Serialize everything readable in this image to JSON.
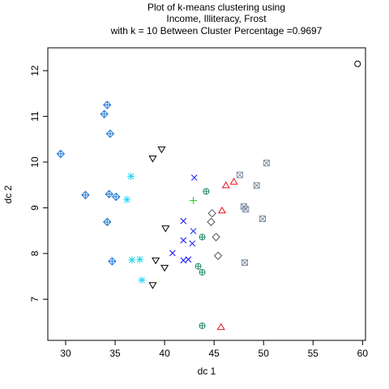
{
  "chart_data": {
    "type": "scatter",
    "title_lines": [
      "Plot of k-means clustering using",
      "Income, Illiteracy, Frost",
      "with  k = 10 Between Cluster Percentage =0.9697"
    ],
    "xlabel": "dc 1",
    "ylabel": "dc 2",
    "xlim": [
      28.2,
      60.3
    ],
    "ylim": [
      6.1,
      12.5
    ],
    "xticks": [
      30,
      35,
      40,
      45,
      50,
      55,
      60
    ],
    "yticks": [
      7,
      8,
      9,
      10,
      11,
      12
    ],
    "grid": false,
    "series": [
      {
        "marker": "circle",
        "color": "#000000",
        "points": [
          [
            59.5,
            12.15
          ]
        ]
      },
      {
        "marker": "diamond-plus",
        "color": "#1f77d4",
        "points": [
          [
            34.2,
            11.25
          ],
          [
            33.9,
            11.05
          ],
          [
            34.5,
            10.62
          ],
          [
            29.5,
            10.18
          ],
          [
            32.0,
            9.28
          ],
          [
            34.4,
            9.3
          ],
          [
            35.1,
            9.24
          ],
          [
            34.2,
            8.69
          ],
          [
            34.7,
            7.83
          ]
        ]
      },
      {
        "marker": "triangle-down",
        "color": "#000000",
        "points": [
          [
            39.7,
            10.28
          ],
          [
            38.8,
            10.08
          ],
          [
            40.1,
            8.55
          ],
          [
            39.1,
            7.85
          ],
          [
            40.0,
            7.69
          ],
          [
            38.8,
            7.31
          ]
        ]
      },
      {
        "marker": "asterisk",
        "color": "#22d3f0",
        "points": [
          [
            36.6,
            9.69
          ],
          [
            36.2,
            9.18
          ],
          [
            36.7,
            7.86
          ],
          [
            37.5,
            7.87
          ],
          [
            37.7,
            7.42
          ]
        ]
      },
      {
        "marker": "x",
        "color": "#1010ff",
        "points": [
          [
            43.0,
            9.66
          ],
          [
            41.9,
            8.71
          ],
          [
            42.9,
            8.49
          ],
          [
            41.9,
            8.29
          ],
          [
            42.8,
            8.22
          ],
          [
            40.8,
            8.01
          ],
          [
            42.4,
            7.87
          ],
          [
            41.9,
            7.85
          ]
        ]
      },
      {
        "marker": "plus",
        "color": "#22cc22",
        "points": [
          [
            42.9,
            9.16
          ]
        ]
      },
      {
        "marker": "circle-plus",
        "color": "#228b6b",
        "points": [
          [
            44.2,
            9.36
          ],
          [
            43.8,
            8.36
          ],
          [
            43.4,
            7.72
          ],
          [
            43.8,
            7.59
          ],
          [
            43.8,
            6.42
          ]
        ]
      },
      {
        "marker": "diamond",
        "color": "#555555",
        "points": [
          [
            44.8,
            8.88
          ],
          [
            44.7,
            8.69
          ],
          [
            45.2,
            8.36
          ],
          [
            45.4,
            7.95
          ]
        ]
      },
      {
        "marker": "triangle-up",
        "color": "#e8101e",
        "points": [
          [
            46.2,
            9.49
          ],
          [
            47.0,
            9.57
          ],
          [
            45.8,
            8.94
          ],
          [
            45.7,
            6.39
          ]
        ]
      },
      {
        "marker": "square-x",
        "color": "#7f8fa6",
        "points": [
          [
            47.6,
            9.72
          ],
          [
            50.3,
            9.98
          ],
          [
            49.3,
            9.49
          ],
          [
            48.0,
            9.03
          ],
          [
            48.2,
            8.97
          ],
          [
            49.9,
            8.76
          ],
          [
            48.1,
            7.8
          ]
        ]
      }
    ]
  }
}
